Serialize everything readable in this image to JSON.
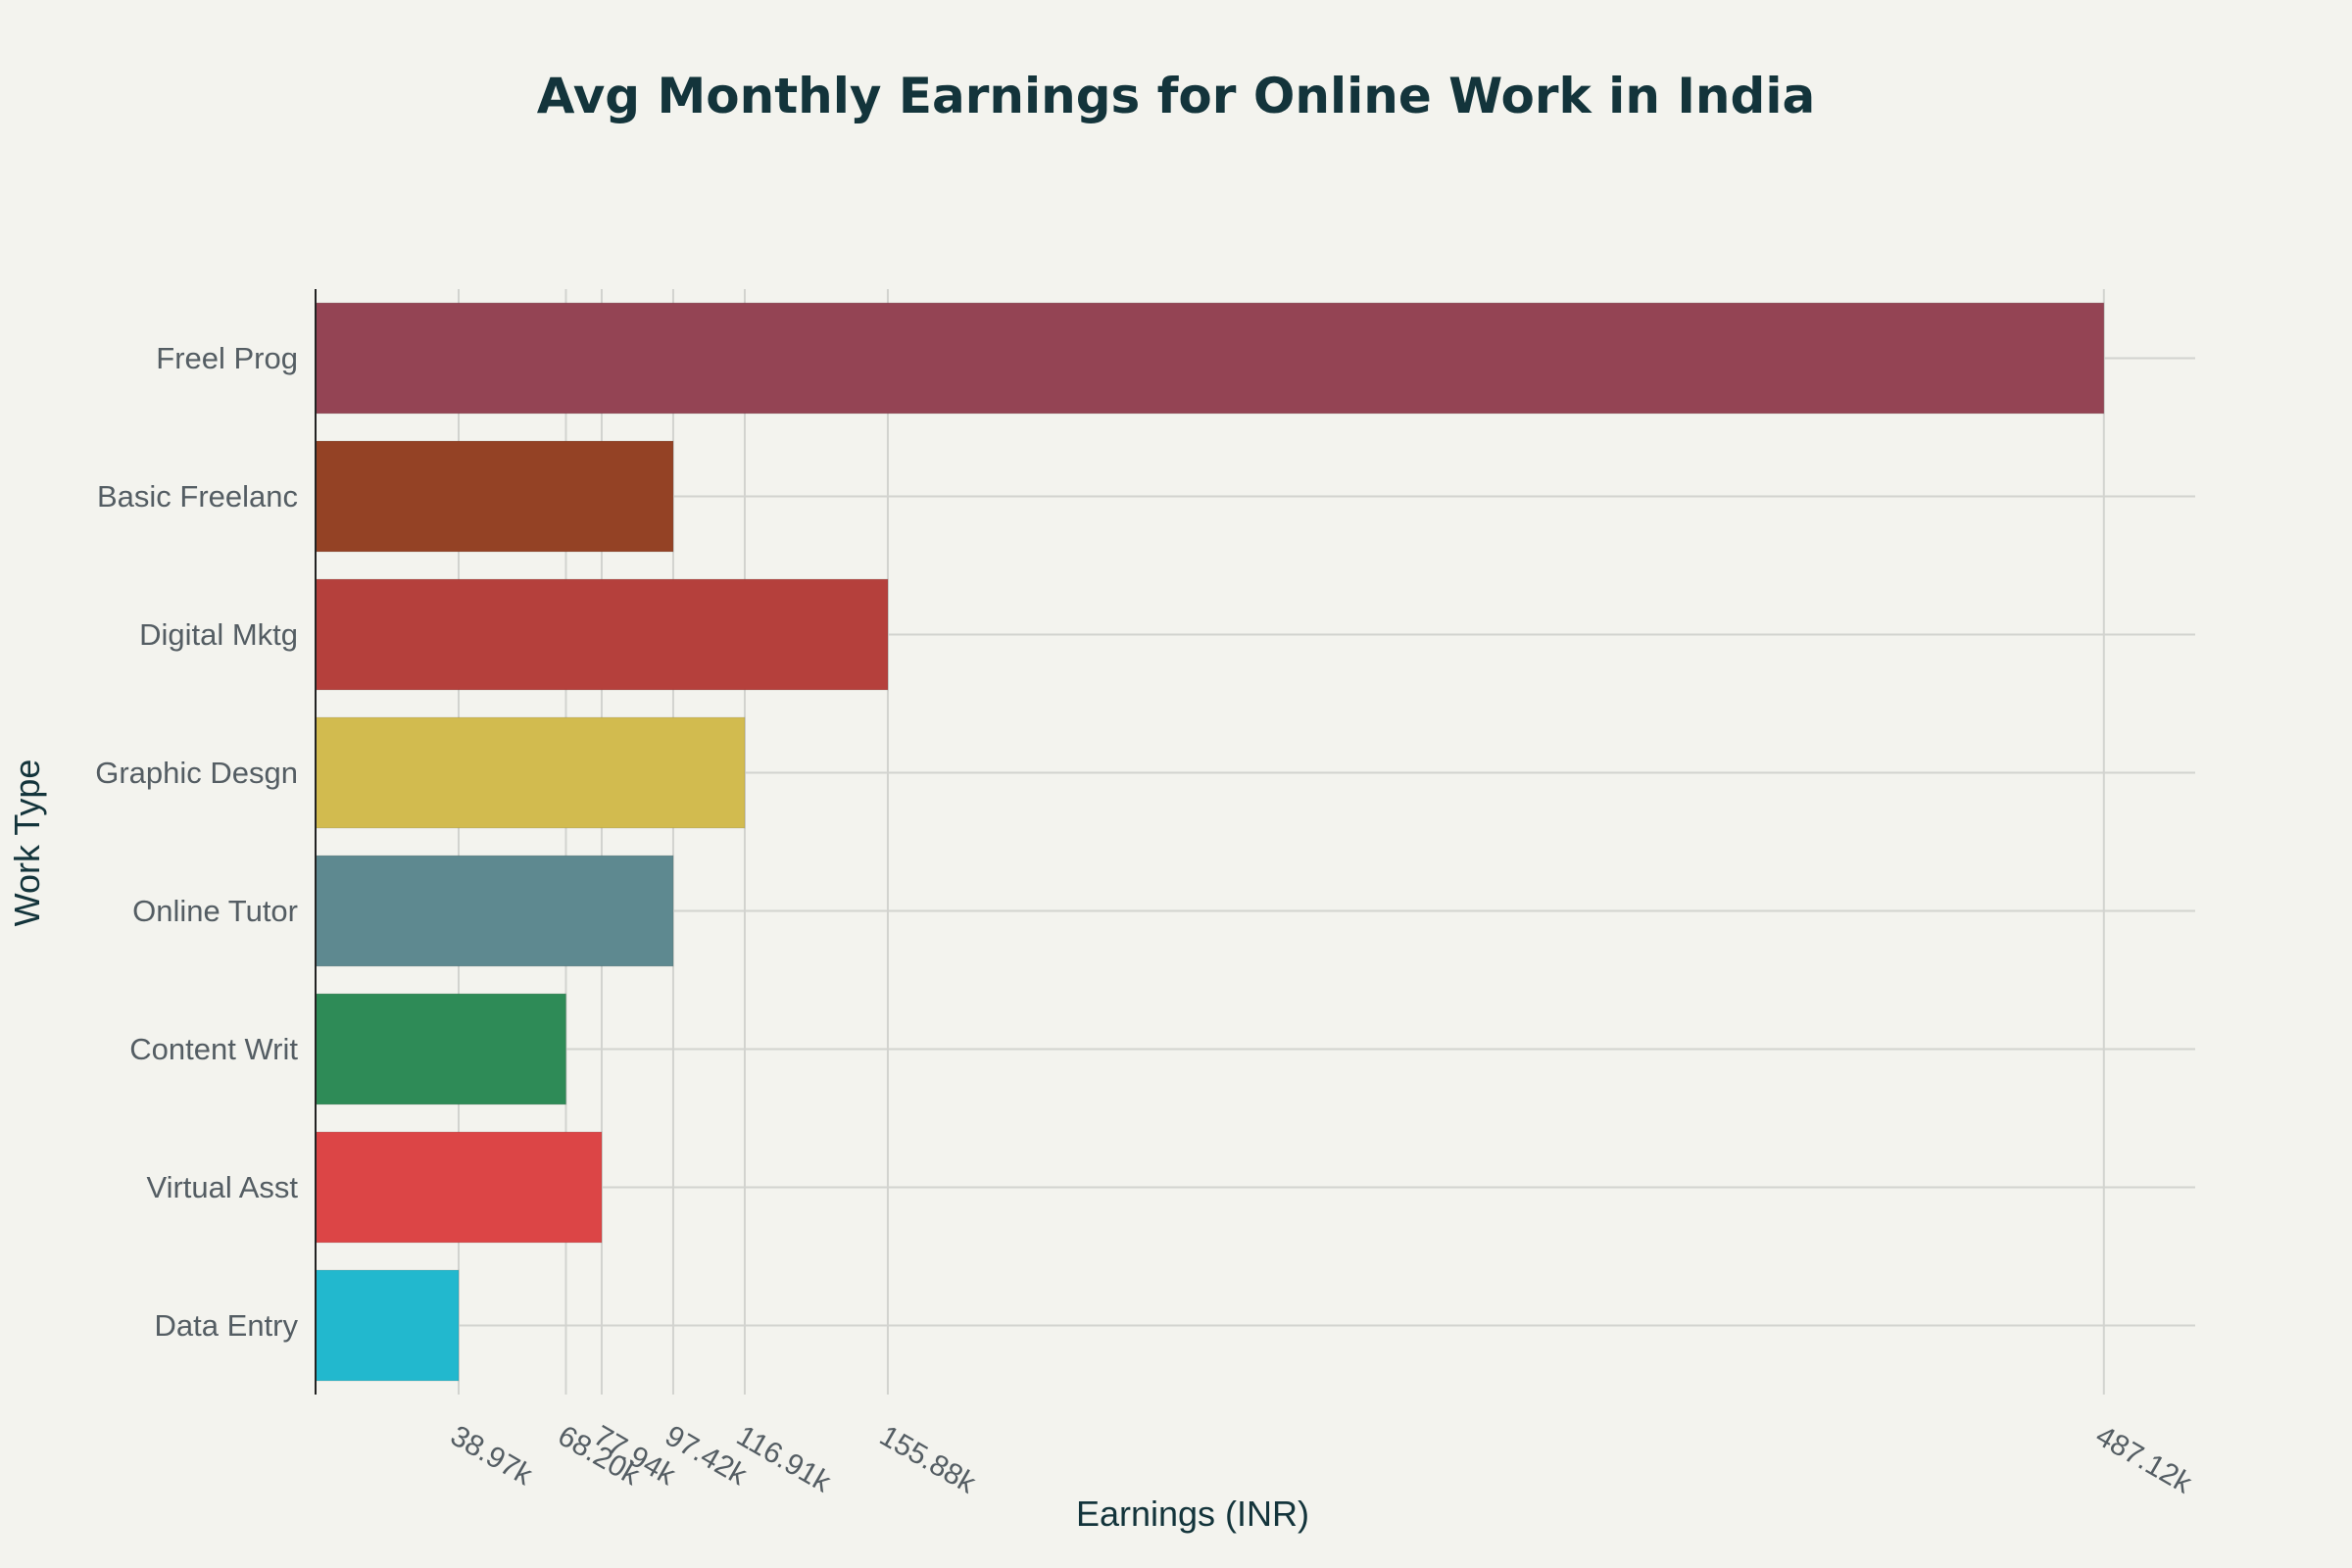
{
  "chart_data": {
    "type": "bar",
    "orientation": "horizontal",
    "title": "Avg Monthly Earnings for Online Work in India",
    "xlabel": "Earnings (INR)",
    "ylabel": "Work Type",
    "xlim": [
      0,
      512000
    ],
    "grid": true,
    "tick_values": [
      38970,
      68200,
      77940,
      97420,
      116910,
      155880,
      487120
    ],
    "tick_labels": [
      "38.97k",
      "68.20k",
      "77.94k",
      "97.42k",
      "116.91k",
      "155.88k",
      "487.12k"
    ],
    "categories": [
      "Freel Prog",
      "Basic Freelanc",
      "Digital Mktg",
      "Graphic Desgn",
      "Online Tutor",
      "Content Writ",
      "Virtual Asst",
      "Data Entry"
    ],
    "values": [
      487120,
      97420,
      155880,
      116910,
      97420,
      68200,
      77940,
      38970
    ],
    "colors": [
      "#944454",
      "#944225",
      "#b5403c",
      "#d2bb4f",
      "#5e8990",
      "#2e8b57",
      "#dc4546",
      "#22b8ce"
    ]
  }
}
